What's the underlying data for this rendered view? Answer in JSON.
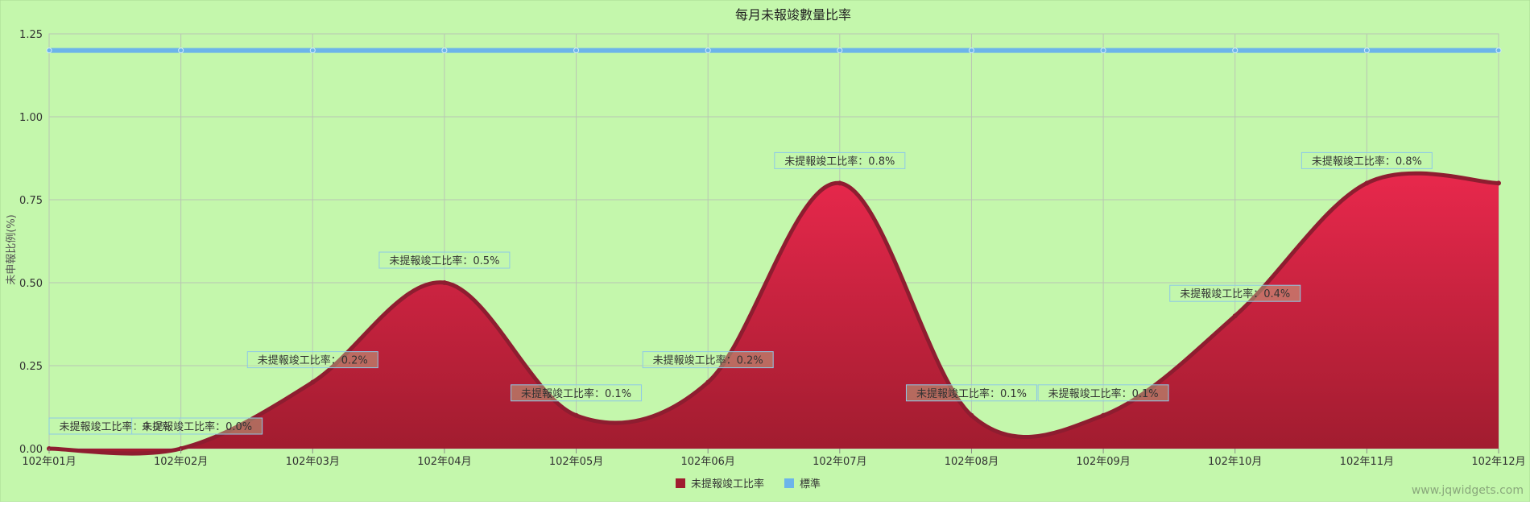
{
  "chart_data": {
    "type": "area",
    "title": "每月未報竣數量比率",
    "ylabel": "未申報比例(%)",
    "xlabel": "",
    "ylim": [
      0,
      1.25
    ],
    "yticks": [
      "0.00",
      "0.25",
      "0.50",
      "0.75",
      "1.00",
      "1.25"
    ],
    "categories": [
      "102年01月",
      "102年02月",
      "102年03月",
      "102年04月",
      "102年05月",
      "102年06月",
      "102年07月",
      "102年08月",
      "102年09月",
      "102年10月",
      "102年11月",
      "102年12月"
    ],
    "series": [
      {
        "name": "未提報竣工比率",
        "type": "spline-area",
        "color": "#c8213f",
        "values": [
          0.0,
          0.0,
          0.2,
          0.5,
          0.1,
          0.2,
          0.8,
          0.1,
          0.1,
          0.4,
          0.8,
          0.8
        ],
        "data_labels": [
          "未提報竣工比率：0.0%",
          "未提報竣工比率：0.0%",
          "未提報竣工比率：0.2%",
          "未提報竣工比率：0.5%",
          "未提報竣工比率：0.1%",
          "未提報竣工比率：0.2%",
          "未提報竣工比率：0.8%",
          "未提報竣工比率：0.1%",
          "未提報竣工比率：0.1%",
          "未提報竣工比率：0.4%",
          "未提報竣工比率：0.8%",
          ""
        ]
      },
      {
        "name": "標準",
        "type": "line",
        "color": "#6cb4ea",
        "values": [
          1.2,
          1.2,
          1.2,
          1.2,
          1.2,
          1.2,
          1.2,
          1.2,
          1.2,
          1.2,
          1.2,
          1.2
        ]
      }
    ],
    "grid": true,
    "legend_position": "bottom-center",
    "background": "#c4f7ac",
    "watermark": "www.jqwidgets.com"
  }
}
